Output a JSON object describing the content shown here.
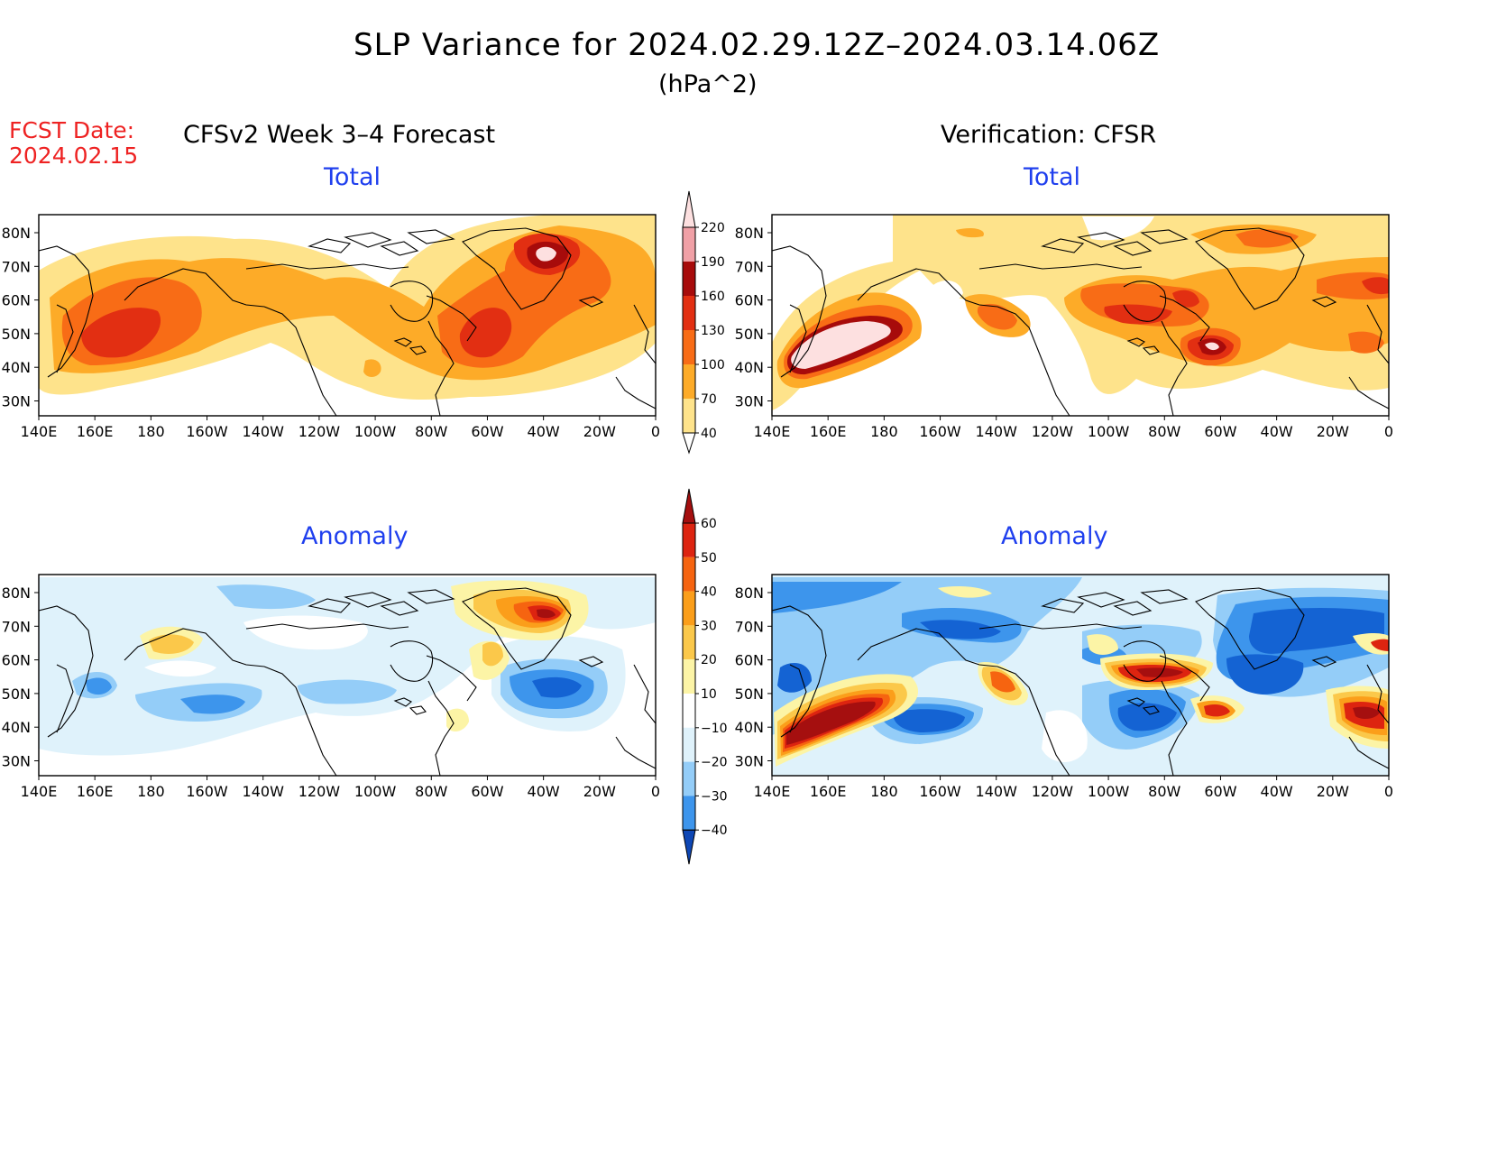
{
  "header": {
    "title": "SLP Variance for 2024.02.29.12Z–2024.03.14.06Z",
    "units": "(hPa^2)",
    "fcst_label": "FCST Date:",
    "fcst_date": "2024.02.15",
    "left_title": "CFSv2 Week 3–4 Forecast",
    "right_title": "Verification: CFSR"
  },
  "panels": {
    "top_left": "Total",
    "top_right": "Total",
    "bottom_left": "Anomaly",
    "bottom_right": "Anomaly"
  },
  "axes": {
    "lon_labels": [
      "140E",
      "160E",
      "180",
      "160W",
      "140W",
      "120W",
      "100W",
      "80W",
      "60W",
      "40W",
      "20W",
      "0"
    ],
    "lat_labels": [
      "80N",
      "70N",
      "60N",
      "50N",
      "40N",
      "30N"
    ]
  },
  "colorbars": {
    "total": {
      "levels": [
        "40",
        "70",
        "100",
        "130",
        "160",
        "190",
        "220"
      ],
      "colors": [
        "#fee38b",
        "#fdab28",
        "#f86c16",
        "#e22f12",
        "#a70b0b",
        "#f0a0a6",
        "#fde0e0",
        "#ffffff"
      ]
    },
    "anomaly": {
      "levels": [
        "60",
        "50",
        "40",
        "30",
        "20",
        "10",
        "−10",
        "−20",
        "−30",
        "−40"
      ],
      "colors": [
        "#a50f0f",
        "#dd2410",
        "#f66410",
        "#fb9e1a",
        "#fbc84a",
        "#fcf4a6",
        "#ffffff",
        "#dff2fb",
        "#94cdf8",
        "#3d95ec",
        "#1463d3",
        "#0e47b5"
      ]
    }
  },
  "palette": {
    "total_bands": [
      "#fee38b",
      "#fdab28",
      "#f86c16",
      "#e22f12",
      "#a70b0b",
      "#fde0e0"
    ],
    "anom_pos": [
      "#fcf4a6",
      "#fbc84a",
      "#fb9e1a",
      "#f66410",
      "#dd2410",
      "#a50f0f"
    ],
    "anom_neg": [
      "#dff2fb",
      "#94cdf8",
      "#3d95ec",
      "#1463d3"
    ]
  }
}
